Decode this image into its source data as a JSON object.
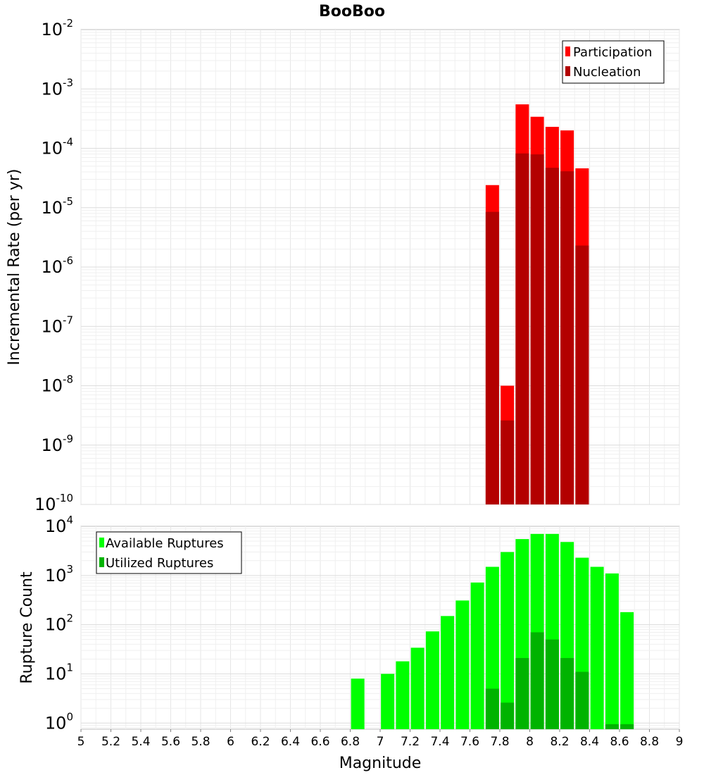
{
  "chart_data": [
    {
      "type": "bar",
      "title": "BooBoo",
      "ylabel": "Incremental Rate (per yr)",
      "xlabel": "",
      "y_scale": "log",
      "ylim": [
        1e-10,
        0.01
      ],
      "y_ticks": [
        {
          "base": "10",
          "exp": "-10"
        },
        {
          "base": "10",
          "exp": "-9"
        },
        {
          "base": "10",
          "exp": "-8"
        },
        {
          "base": "10",
          "exp": "-7"
        },
        {
          "base": "10",
          "exp": "-6"
        },
        {
          "base": "10",
          "exp": "-5"
        },
        {
          "base": "10",
          "exp": "-4"
        },
        {
          "base": "10",
          "exp": "-3"
        },
        {
          "base": "10",
          "exp": "-2"
        }
      ],
      "xlim": [
        5,
        9
      ],
      "grid": true,
      "legend_position": "top-right",
      "colors": {
        "participation": "#ff0000",
        "nucleation": "#b30000"
      },
      "series": [
        {
          "name": "Participation",
          "x": [
            7.75,
            7.85,
            7.95,
            8.05,
            8.15,
            8.25,
            8.35
          ],
          "values": [
            2.4e-05,
            1e-08,
            0.00055,
            0.00034,
            0.00023,
            0.0002,
            4.6e-05
          ]
        },
        {
          "name": "Nucleation",
          "x": [
            7.75,
            7.85,
            7.95,
            8.05,
            8.15,
            8.25,
            8.35
          ],
          "values": [
            8.5e-06,
            2.6e-09,
            8.2e-05,
            7.9e-05,
            4.7e-05,
            4.1e-05,
            2.3e-06
          ]
        }
      ]
    },
    {
      "type": "bar",
      "title": "",
      "ylabel": "Rupture Count",
      "xlabel": "Magnitude",
      "y_scale": "log",
      "ylim": [
        0.75,
        10000
      ],
      "y_ticks": [
        {
          "base": "10",
          "exp": "0"
        },
        {
          "base": "10",
          "exp": "1"
        },
        {
          "base": "10",
          "exp": "2"
        },
        {
          "base": "10",
          "exp": "3"
        },
        {
          "base": "10",
          "exp": "4"
        }
      ],
      "xlim": [
        5,
        9
      ],
      "x_ticks": [
        "5",
        "5.2",
        "5.4",
        "5.6",
        "5.8",
        "6",
        "6.2",
        "6.4",
        "6.6",
        "6.8",
        "7",
        "7.2",
        "7.4",
        "7.6",
        "7.8",
        "8",
        "8.2",
        "8.4",
        "8.6",
        "8.8",
        "9"
      ],
      "grid": true,
      "legend_position": "top-left",
      "colors": {
        "available": "#00ff00",
        "utilized": "#00b300"
      },
      "series": [
        {
          "name": "Available Ruptures",
          "x": [
            6.85,
            7.05,
            7.15,
            7.25,
            7.35,
            7.45,
            7.55,
            7.65,
            7.75,
            7.85,
            7.95,
            8.05,
            8.15,
            8.25,
            8.35,
            8.45,
            8.55,
            8.65
          ],
          "values": [
            8,
            10,
            18,
            34,
            73,
            150,
            310,
            720,
            1500,
            3000,
            5500,
            7000,
            7000,
            4800,
            2300,
            1500,
            1100,
            180
          ]
        },
        {
          "name": "Utilized Ruptures",
          "x": [
            7.75,
            7.85,
            7.95,
            8.05,
            8.15,
            8.25,
            8.35,
            8.55,
            8.65
          ],
          "values": [
            5,
            2.6,
            21,
            70,
            50,
            21,
            11,
            0.95,
            0.95
          ]
        }
      ]
    }
  ]
}
